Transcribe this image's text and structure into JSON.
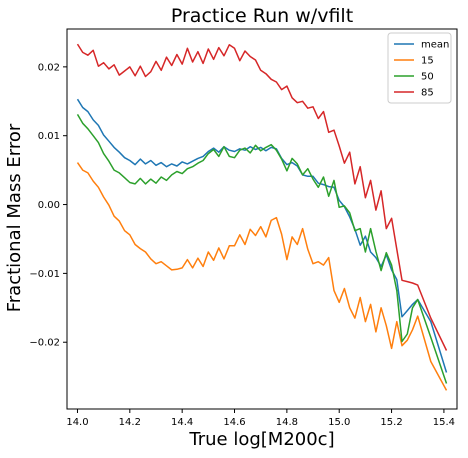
{
  "chart_data": {
    "type": "line",
    "title": "Practice Run w/vfilt",
    "xlabel": "True log[M200c]",
    "ylabel": "Fractional Mass Error",
    "xlim": [
      13.96,
      15.45
    ],
    "ylim": [
      -0.0297,
      0.0255
    ],
    "xticks": [
      14.0,
      14.2,
      14.4,
      14.6,
      14.8,
      15.0,
      15.2,
      15.4
    ],
    "xtick_labels": [
      "14.0",
      "14.2",
      "14.4",
      "14.6",
      "14.8",
      "15.0",
      "15.2",
      "15.4"
    ],
    "yticks": [
      -0.02,
      -0.01,
      0.0,
      0.01,
      0.02
    ],
    "ytick_labels": [
      "−0.02",
      "−0.01",
      "0.00",
      "0.01",
      "0.02"
    ],
    "grid": false,
    "legend_position": "top-right",
    "series": [
      {
        "name": "mean",
        "color": "#1f77b4",
        "points": [
          [
            14.0,
            0.0153
          ],
          [
            14.02,
            0.0141
          ],
          [
            14.04,
            0.0135
          ],
          [
            14.06,
            0.0123
          ],
          [
            14.08,
            0.0115
          ],
          [
            14.1,
            0.0101
          ],
          [
            14.12,
            0.0092
          ],
          [
            14.14,
            0.0083
          ],
          [
            14.16,
            0.0076
          ],
          [
            14.18,
            0.0068
          ],
          [
            14.2,
            0.0064
          ],
          [
            14.22,
            0.0058
          ],
          [
            14.24,
            0.0066
          ],
          [
            14.26,
            0.0059
          ],
          [
            14.28,
            0.0064
          ],
          [
            14.3,
            0.0057
          ],
          [
            14.32,
            0.0061
          ],
          [
            14.34,
            0.0055
          ],
          [
            14.36,
            0.0059
          ],
          [
            14.38,
            0.0056
          ],
          [
            14.4,
            0.0062
          ],
          [
            14.42,
            0.0059
          ],
          [
            14.44,
            0.0063
          ],
          [
            14.46,
            0.0067
          ],
          [
            14.48,
            0.007
          ],
          [
            14.5,
            0.0077
          ],
          [
            14.52,
            0.0082
          ],
          [
            14.54,
            0.0076
          ],
          [
            14.56,
            0.0084
          ],
          [
            14.58,
            0.0079
          ],
          [
            14.6,
            0.0077
          ],
          [
            14.62,
            0.0081
          ],
          [
            14.64,
            0.0079
          ],
          [
            14.66,
            0.0084
          ],
          [
            14.68,
            0.008
          ],
          [
            14.7,
            0.0083
          ],
          [
            14.72,
            0.0078
          ],
          [
            14.74,
            0.0083
          ],
          [
            14.76,
            0.0081
          ],
          [
            14.78,
            0.0067
          ],
          [
            14.8,
            0.0058
          ],
          [
            14.82,
            0.0061
          ],
          [
            14.84,
            0.0056
          ],
          [
            14.86,
            0.0043
          ],
          [
            14.88,
            0.0041
          ],
          [
            14.9,
            0.0041
          ],
          [
            14.92,
            0.0031
          ],
          [
            14.94,
            0.0029
          ],
          [
            14.96,
            0.0026
          ],
          [
            14.98,
            0.0025
          ],
          [
            15.0,
            0.0006
          ],
          [
            15.02,
            -0.0003
          ],
          [
            15.04,
            -0.0018
          ],
          [
            15.06,
            -0.0036
          ],
          [
            15.08,
            -0.0059
          ],
          [
            15.1,
            -0.0046
          ],
          [
            15.12,
            -0.0069
          ],
          [
            15.14,
            -0.0077
          ],
          [
            15.16,
            -0.009
          ],
          [
            15.18,
            -0.0073
          ],
          [
            15.2,
            -0.0095
          ],
          [
            15.22,
            -0.0109
          ],
          [
            15.24,
            -0.0163
          ],
          [
            15.26,
            -0.0154
          ],
          [
            15.28,
            -0.0145
          ],
          [
            15.3,
            -0.0138
          ],
          [
            15.35,
            -0.017
          ],
          [
            15.41,
            -0.0244
          ]
        ]
      },
      {
        "name": "15",
        "color": "#ff7f0e",
        "points": [
          [
            14.0,
            0.0061
          ],
          [
            14.02,
            0.005
          ],
          [
            14.04,
            0.0046
          ],
          [
            14.06,
            0.0034
          ],
          [
            14.08,
            0.0025
          ],
          [
            14.1,
            0.0011
          ],
          [
            14.12,
            -0.0001
          ],
          [
            14.14,
            -0.0017
          ],
          [
            14.16,
            -0.0024
          ],
          [
            14.18,
            -0.0038
          ],
          [
            14.2,
            -0.0044
          ],
          [
            14.22,
            -0.0058
          ],
          [
            14.24,
            -0.0064
          ],
          [
            14.26,
            -0.0069
          ],
          [
            14.28,
            -0.0079
          ],
          [
            14.3,
            -0.0086
          ],
          [
            14.32,
            -0.0083
          ],
          [
            14.34,
            -0.0089
          ],
          [
            14.36,
            -0.0095
          ],
          [
            14.38,
            -0.0094
          ],
          [
            14.4,
            -0.0092
          ],
          [
            14.42,
            -0.008
          ],
          [
            14.44,
            -0.0092
          ],
          [
            14.46,
            -0.0078
          ],
          [
            14.48,
            -0.009
          ],
          [
            14.5,
            -0.0069
          ],
          [
            14.52,
            -0.0081
          ],
          [
            14.54,
            -0.0063
          ],
          [
            14.56,
            -0.0079
          ],
          [
            14.58,
            -0.006
          ],
          [
            14.6,
            -0.006
          ],
          [
            14.62,
            -0.0044
          ],
          [
            14.64,
            -0.0058
          ],
          [
            14.66,
            -0.0036
          ],
          [
            14.68,
            -0.0045
          ],
          [
            14.7,
            -0.0032
          ],
          [
            14.72,
            -0.0047
          ],
          [
            14.74,
            -0.0023
          ],
          [
            14.76,
            -0.0019
          ],
          [
            14.78,
            -0.0043
          ],
          [
            14.8,
            -0.008
          ],
          [
            14.82,
            -0.0047
          ],
          [
            14.84,
            -0.0058
          ],
          [
            14.86,
            -0.0035
          ],
          [
            14.88,
            -0.0065
          ],
          [
            14.9,
            -0.0086
          ],
          [
            14.92,
            -0.0083
          ],
          [
            14.94,
            -0.0088
          ],
          [
            14.96,
            -0.0077
          ],
          [
            14.98,
            -0.0125
          ],
          [
            15.0,
            -0.0142
          ],
          [
            15.02,
            -0.0122
          ],
          [
            15.04,
            -0.015
          ],
          [
            15.06,
            -0.0165
          ],
          [
            15.08,
            -0.0135
          ],
          [
            15.1,
            -0.017
          ],
          [
            15.12,
            -0.0145
          ],
          [
            15.14,
            -0.0185
          ],
          [
            15.16,
            -0.015
          ],
          [
            15.18,
            -0.0176
          ],
          [
            15.2,
            -0.0209
          ],
          [
            15.22,
            -0.017
          ],
          [
            15.24,
            -0.0205
          ],
          [
            15.26,
            -0.0197
          ],
          [
            15.28,
            -0.0182
          ],
          [
            15.3,
            -0.0162
          ],
          [
            15.35,
            -0.0228
          ],
          [
            15.41,
            -0.027
          ]
        ]
      },
      {
        "name": "50",
        "color": "#2ca02c",
        "points": [
          [
            14.0,
            0.0131
          ],
          [
            14.02,
            0.0118
          ],
          [
            14.04,
            0.011
          ],
          [
            14.06,
            0.01
          ],
          [
            14.08,
            0.009
          ],
          [
            14.1,
            0.0074
          ],
          [
            14.12,
            0.0063
          ],
          [
            14.14,
            0.005
          ],
          [
            14.16,
            0.0046
          ],
          [
            14.18,
            0.0039
          ],
          [
            14.2,
            0.0032
          ],
          [
            14.22,
            0.003
          ],
          [
            14.24,
            0.0038
          ],
          [
            14.26,
            0.003
          ],
          [
            14.28,
            0.0037
          ],
          [
            14.3,
            0.0031
          ],
          [
            14.32,
            0.004
          ],
          [
            14.34,
            0.0035
          ],
          [
            14.36,
            0.0043
          ],
          [
            14.38,
            0.0048
          ],
          [
            14.4,
            0.0045
          ],
          [
            14.42,
            0.0052
          ],
          [
            14.44,
            0.0055
          ],
          [
            14.46,
            0.006
          ],
          [
            14.48,
            0.0064
          ],
          [
            14.5,
            0.0074
          ],
          [
            14.52,
            0.008
          ],
          [
            14.54,
            0.007
          ],
          [
            14.56,
            0.0084
          ],
          [
            14.58,
            0.007
          ],
          [
            14.6,
            0.0068
          ],
          [
            14.62,
            0.0079
          ],
          [
            14.64,
            0.0082
          ],
          [
            14.66,
            0.0075
          ],
          [
            14.68,
            0.0086
          ],
          [
            14.7,
            0.0078
          ],
          [
            14.72,
            0.0083
          ],
          [
            14.74,
            0.0087
          ],
          [
            14.76,
            0.0079
          ],
          [
            14.78,
            0.0066
          ],
          [
            14.8,
            0.0049
          ],
          [
            14.82,
            0.0067
          ],
          [
            14.84,
            0.0059
          ],
          [
            14.86,
            0.0043
          ],
          [
            14.88,
            0.0052
          ],
          [
            14.9,
            0.0037
          ],
          [
            14.92,
            0.0025
          ],
          [
            14.94,
            0.004
          ],
          [
            14.96,
            0.0012
          ],
          [
            14.98,
            0.0035
          ],
          [
            15.0,
            -0.0004
          ],
          [
            15.02,
            -0.0002
          ],
          [
            15.04,
            -0.0012
          ],
          [
            15.06,
            -0.0038
          ],
          [
            15.08,
            -0.0035
          ],
          [
            15.1,
            -0.0069
          ],
          [
            15.12,
            -0.0035
          ],
          [
            15.14,
            -0.0068
          ],
          [
            15.16,
            -0.0096
          ],
          [
            15.18,
            -0.007
          ],
          [
            15.2,
            -0.0088
          ],
          [
            15.22,
            -0.0125
          ],
          [
            15.24,
            -0.0199
          ],
          [
            15.26,
            -0.0188
          ],
          [
            15.28,
            -0.015
          ],
          [
            15.3,
            -0.0138
          ],
          [
            15.35,
            -0.0193
          ],
          [
            15.41,
            -0.026
          ]
        ]
      },
      {
        "name": "85",
        "color": "#d62728",
        "points": [
          [
            14.0,
            0.0233
          ],
          [
            14.02,
            0.0221
          ],
          [
            14.04,
            0.0217
          ],
          [
            14.06,
            0.0224
          ],
          [
            14.08,
            0.0201
          ],
          [
            14.1,
            0.0206
          ],
          [
            14.12,
            0.0197
          ],
          [
            14.14,
            0.0203
          ],
          [
            14.16,
            0.0188
          ],
          [
            14.18,
            0.0194
          ],
          [
            14.2,
            0.02
          ],
          [
            14.22,
            0.0187
          ],
          [
            14.24,
            0.0201
          ],
          [
            14.26,
            0.0186
          ],
          [
            14.28,
            0.0193
          ],
          [
            14.3,
            0.0208
          ],
          [
            14.32,
            0.0195
          ],
          [
            14.34,
            0.0214
          ],
          [
            14.36,
            0.0202
          ],
          [
            14.38,
            0.0218
          ],
          [
            14.4,
            0.0204
          ],
          [
            14.42,
            0.0227
          ],
          [
            14.44,
            0.0207
          ],
          [
            14.46,
            0.0222
          ],
          [
            14.48,
            0.0205
          ],
          [
            14.5,
            0.0226
          ],
          [
            14.52,
            0.0211
          ],
          [
            14.54,
            0.0228
          ],
          [
            14.56,
            0.0216
          ],
          [
            14.58,
            0.0232
          ],
          [
            14.6,
            0.0227
          ],
          [
            14.62,
            0.0209
          ],
          [
            14.64,
            0.0223
          ],
          [
            14.66,
            0.0215
          ],
          [
            14.68,
            0.021
          ],
          [
            14.7,
            0.0195
          ],
          [
            14.72,
            0.019
          ],
          [
            14.74,
            0.0182
          ],
          [
            14.76,
            0.0178
          ],
          [
            14.78,
            0.0167
          ],
          [
            14.8,
            0.0172
          ],
          [
            14.82,
            0.0155
          ],
          [
            14.84,
            0.0148
          ],
          [
            14.86,
            0.015
          ],
          [
            14.88,
            0.014
          ],
          [
            14.9,
            0.0142
          ],
          [
            14.92,
            0.0125
          ],
          [
            14.94,
            0.0135
          ],
          [
            14.96,
            0.0105
          ],
          [
            14.98,
            0.0108
          ],
          [
            15.0,
            0.0085
          ],
          [
            15.02,
            0.006
          ],
          [
            15.04,
            0.0076
          ],
          [
            15.06,
            0.003
          ],
          [
            15.08,
            0.0055
          ],
          [
            15.1,
            0.001
          ],
          [
            15.12,
            0.0035
          ],
          [
            15.14,
            -0.0008
          ],
          [
            15.16,
            0.002
          ],
          [
            15.18,
            -0.0035
          ],
          [
            15.2,
            -0.002
          ],
          [
            15.22,
            -0.0065
          ],
          [
            15.24,
            -0.011
          ],
          [
            15.26,
            -0.0112
          ],
          [
            15.28,
            -0.0114
          ],
          [
            15.3,
            -0.0117
          ],
          [
            15.35,
            -0.0165
          ],
          [
            15.41,
            -0.0212
          ]
        ]
      }
    ]
  }
}
